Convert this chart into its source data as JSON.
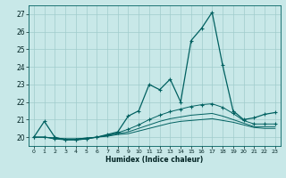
{
  "xlabel": "Humidex (Indice chaleur)",
  "xlim": [
    -0.5,
    23.5
  ],
  "ylim": [
    19.5,
    27.5
  ],
  "yticks": [
    20,
    21,
    22,
    23,
    24,
    25,
    26,
    27
  ],
  "xticks": [
    0,
    1,
    2,
    3,
    4,
    5,
    6,
    7,
    8,
    9,
    10,
    11,
    12,
    13,
    14,
    15,
    16,
    17,
    18,
    19,
    20,
    21,
    22,
    23
  ],
  "background_color": "#c8e8e8",
  "grid_color": "#a0cccc",
  "line_color": "#006060",
  "line1_x": [
    0,
    1,
    2,
    3,
    4,
    5,
    6,
    7,
    8,
    9,
    10,
    11,
    12,
    13,
    14,
    15,
    16,
    17,
    18,
    19,
    20,
    21,
    22,
    23
  ],
  "line1_y": [
    20.0,
    20.9,
    20.0,
    19.85,
    19.85,
    19.9,
    20.0,
    20.15,
    20.3,
    21.2,
    21.5,
    23.0,
    22.7,
    23.3,
    22.0,
    25.5,
    26.2,
    27.1,
    24.1,
    21.5,
    21.0,
    21.1,
    21.3,
    21.4
  ],
  "line2_x": [
    0,
    1,
    2,
    3,
    4,
    5,
    6,
    7,
    8,
    9,
    10,
    11,
    12,
    13,
    14,
    15,
    16,
    17,
    18,
    19,
    20,
    21,
    22,
    23
  ],
  "line2_y": [
    20.0,
    20.0,
    19.9,
    19.85,
    19.85,
    19.9,
    20.0,
    20.1,
    20.25,
    20.45,
    20.7,
    21.0,
    21.25,
    21.45,
    21.6,
    21.75,
    21.85,
    21.9,
    21.7,
    21.35,
    20.95,
    20.75,
    20.75,
    20.75
  ],
  "line3_x": [
    0,
    1,
    2,
    3,
    4,
    5,
    6,
    7,
    8,
    9,
    10,
    11,
    12,
    13,
    14,
    15,
    16,
    17,
    18,
    19,
    20,
    21,
    22,
    23
  ],
  "line3_y": [
    20.0,
    20.0,
    19.95,
    19.9,
    19.9,
    19.95,
    20.0,
    20.1,
    20.2,
    20.3,
    20.5,
    20.7,
    20.9,
    21.05,
    21.15,
    21.25,
    21.3,
    21.35,
    21.2,
    21.0,
    20.8,
    20.6,
    20.6,
    20.6
  ],
  "line4_x": [
    0,
    1,
    2,
    3,
    4,
    5,
    6,
    7,
    8,
    9,
    10,
    11,
    12,
    13,
    14,
    15,
    16,
    17,
    18,
    19,
    20,
    21,
    22,
    23
  ],
  "line4_y": [
    20.0,
    20.0,
    19.95,
    19.9,
    19.9,
    19.95,
    20.0,
    20.05,
    20.15,
    20.2,
    20.35,
    20.5,
    20.65,
    20.8,
    20.9,
    20.95,
    21.0,
    21.05,
    20.95,
    20.85,
    20.7,
    20.55,
    20.5,
    20.5
  ],
  "markers1_x": [
    0,
    1,
    2,
    3,
    4,
    5,
    6,
    7,
    8,
    9,
    10,
    11,
    12,
    13,
    14,
    15,
    16,
    17,
    18,
    19,
    20,
    21,
    22,
    23
  ],
  "markers1_y": [
    20.0,
    20.9,
    20.0,
    19.85,
    19.85,
    19.9,
    20.0,
    20.15,
    20.3,
    21.2,
    21.5,
    23.0,
    22.7,
    23.3,
    22.0,
    25.5,
    26.2,
    27.1,
    24.1,
    21.5,
    21.0,
    21.1,
    21.3,
    21.4
  ],
  "markers2_x": [
    0,
    1,
    2,
    3,
    4,
    5,
    6,
    7,
    8,
    9,
    10,
    11,
    12,
    13,
    14,
    15,
    16,
    17,
    18,
    19,
    20,
    21,
    22,
    23
  ],
  "markers2_y": [
    20.0,
    20.0,
    19.9,
    19.85,
    19.85,
    19.9,
    20.0,
    20.1,
    20.25,
    20.45,
    20.7,
    21.0,
    21.25,
    21.45,
    21.6,
    21.75,
    21.85,
    21.9,
    21.7,
    21.35,
    20.95,
    20.75,
    20.75,
    20.75
  ]
}
